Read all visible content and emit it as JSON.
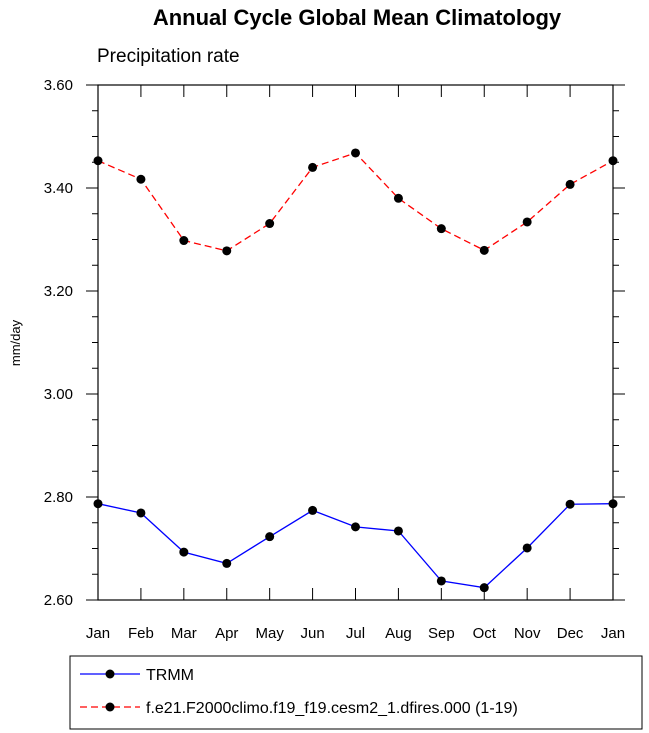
{
  "chart_data": {
    "type": "line",
    "title": "Annual Cycle Global Mean Climatology",
    "subtitle": "Precipitation rate",
    "xlabel": "",
    "ylabel": "mm/day",
    "categories": [
      "Jan",
      "Feb",
      "Mar",
      "Apr",
      "May",
      "Jun",
      "Jul",
      "Aug",
      "Sep",
      "Oct",
      "Nov",
      "Dec",
      "Jan"
    ],
    "ylim": [
      2.6,
      3.6
    ],
    "yticks": [
      "2.60",
      "2.80",
      "3.00",
      "3.20",
      "3.40",
      "3.60"
    ],
    "grid": false,
    "legend_position": "bottom",
    "series": [
      {
        "name": "TRMM",
        "color": "#0000ff",
        "line_style": "solid",
        "marker": "filled-circle",
        "values": [
          2.787,
          2.769,
          2.693,
          2.671,
          2.723,
          2.774,
          2.742,
          2.734,
          2.637,
          2.624,
          2.701,
          2.786,
          2.787
        ]
      },
      {
        "name": "f.e21.F2000climo.f19_f19.cesm2_1.dfires.000 (1-19)",
        "color": "#ff0000",
        "line_style": "dashed",
        "marker": "filled-circle",
        "values": [
          3.453,
          3.417,
          3.298,
          3.278,
          3.331,
          3.44,
          3.468,
          3.38,
          3.321,
          3.279,
          3.334,
          3.407,
          3.453
        ]
      }
    ]
  }
}
